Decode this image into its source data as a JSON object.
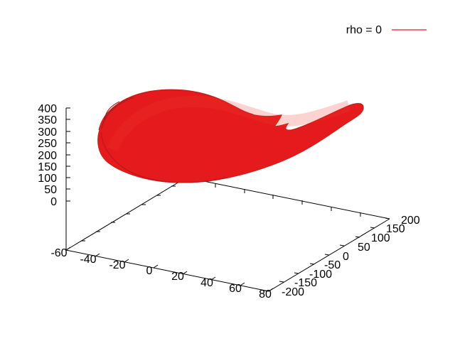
{
  "chart_data": {
    "type": "line",
    "dimension": "3d",
    "series": [
      {
        "name": "rho = 0",
        "color": "#e41a1c",
        "description_shape": "dense filled attractor-like trajectory"
      }
    ],
    "legend": {
      "label": "rho = 0",
      "position": "top-right"
    },
    "axes": {
      "x": {
        "range": [
          -60,
          80
        ],
        "ticks": [
          "-60",
          "-40",
          "-20",
          "0",
          "20",
          "40",
          "60",
          "80"
        ]
      },
      "y": {
        "range": [
          -200,
          200
        ],
        "ticks": [
          "-200",
          "-150",
          "-100",
          "-50",
          "0",
          "50",
          "100",
          "150",
          "200"
        ]
      },
      "z": {
        "range": [
          0,
          400
        ],
        "ticks": [
          "0",
          "50",
          "100",
          "150",
          "200",
          "250",
          "300",
          "350",
          "400"
        ]
      }
    },
    "grid": false
  }
}
